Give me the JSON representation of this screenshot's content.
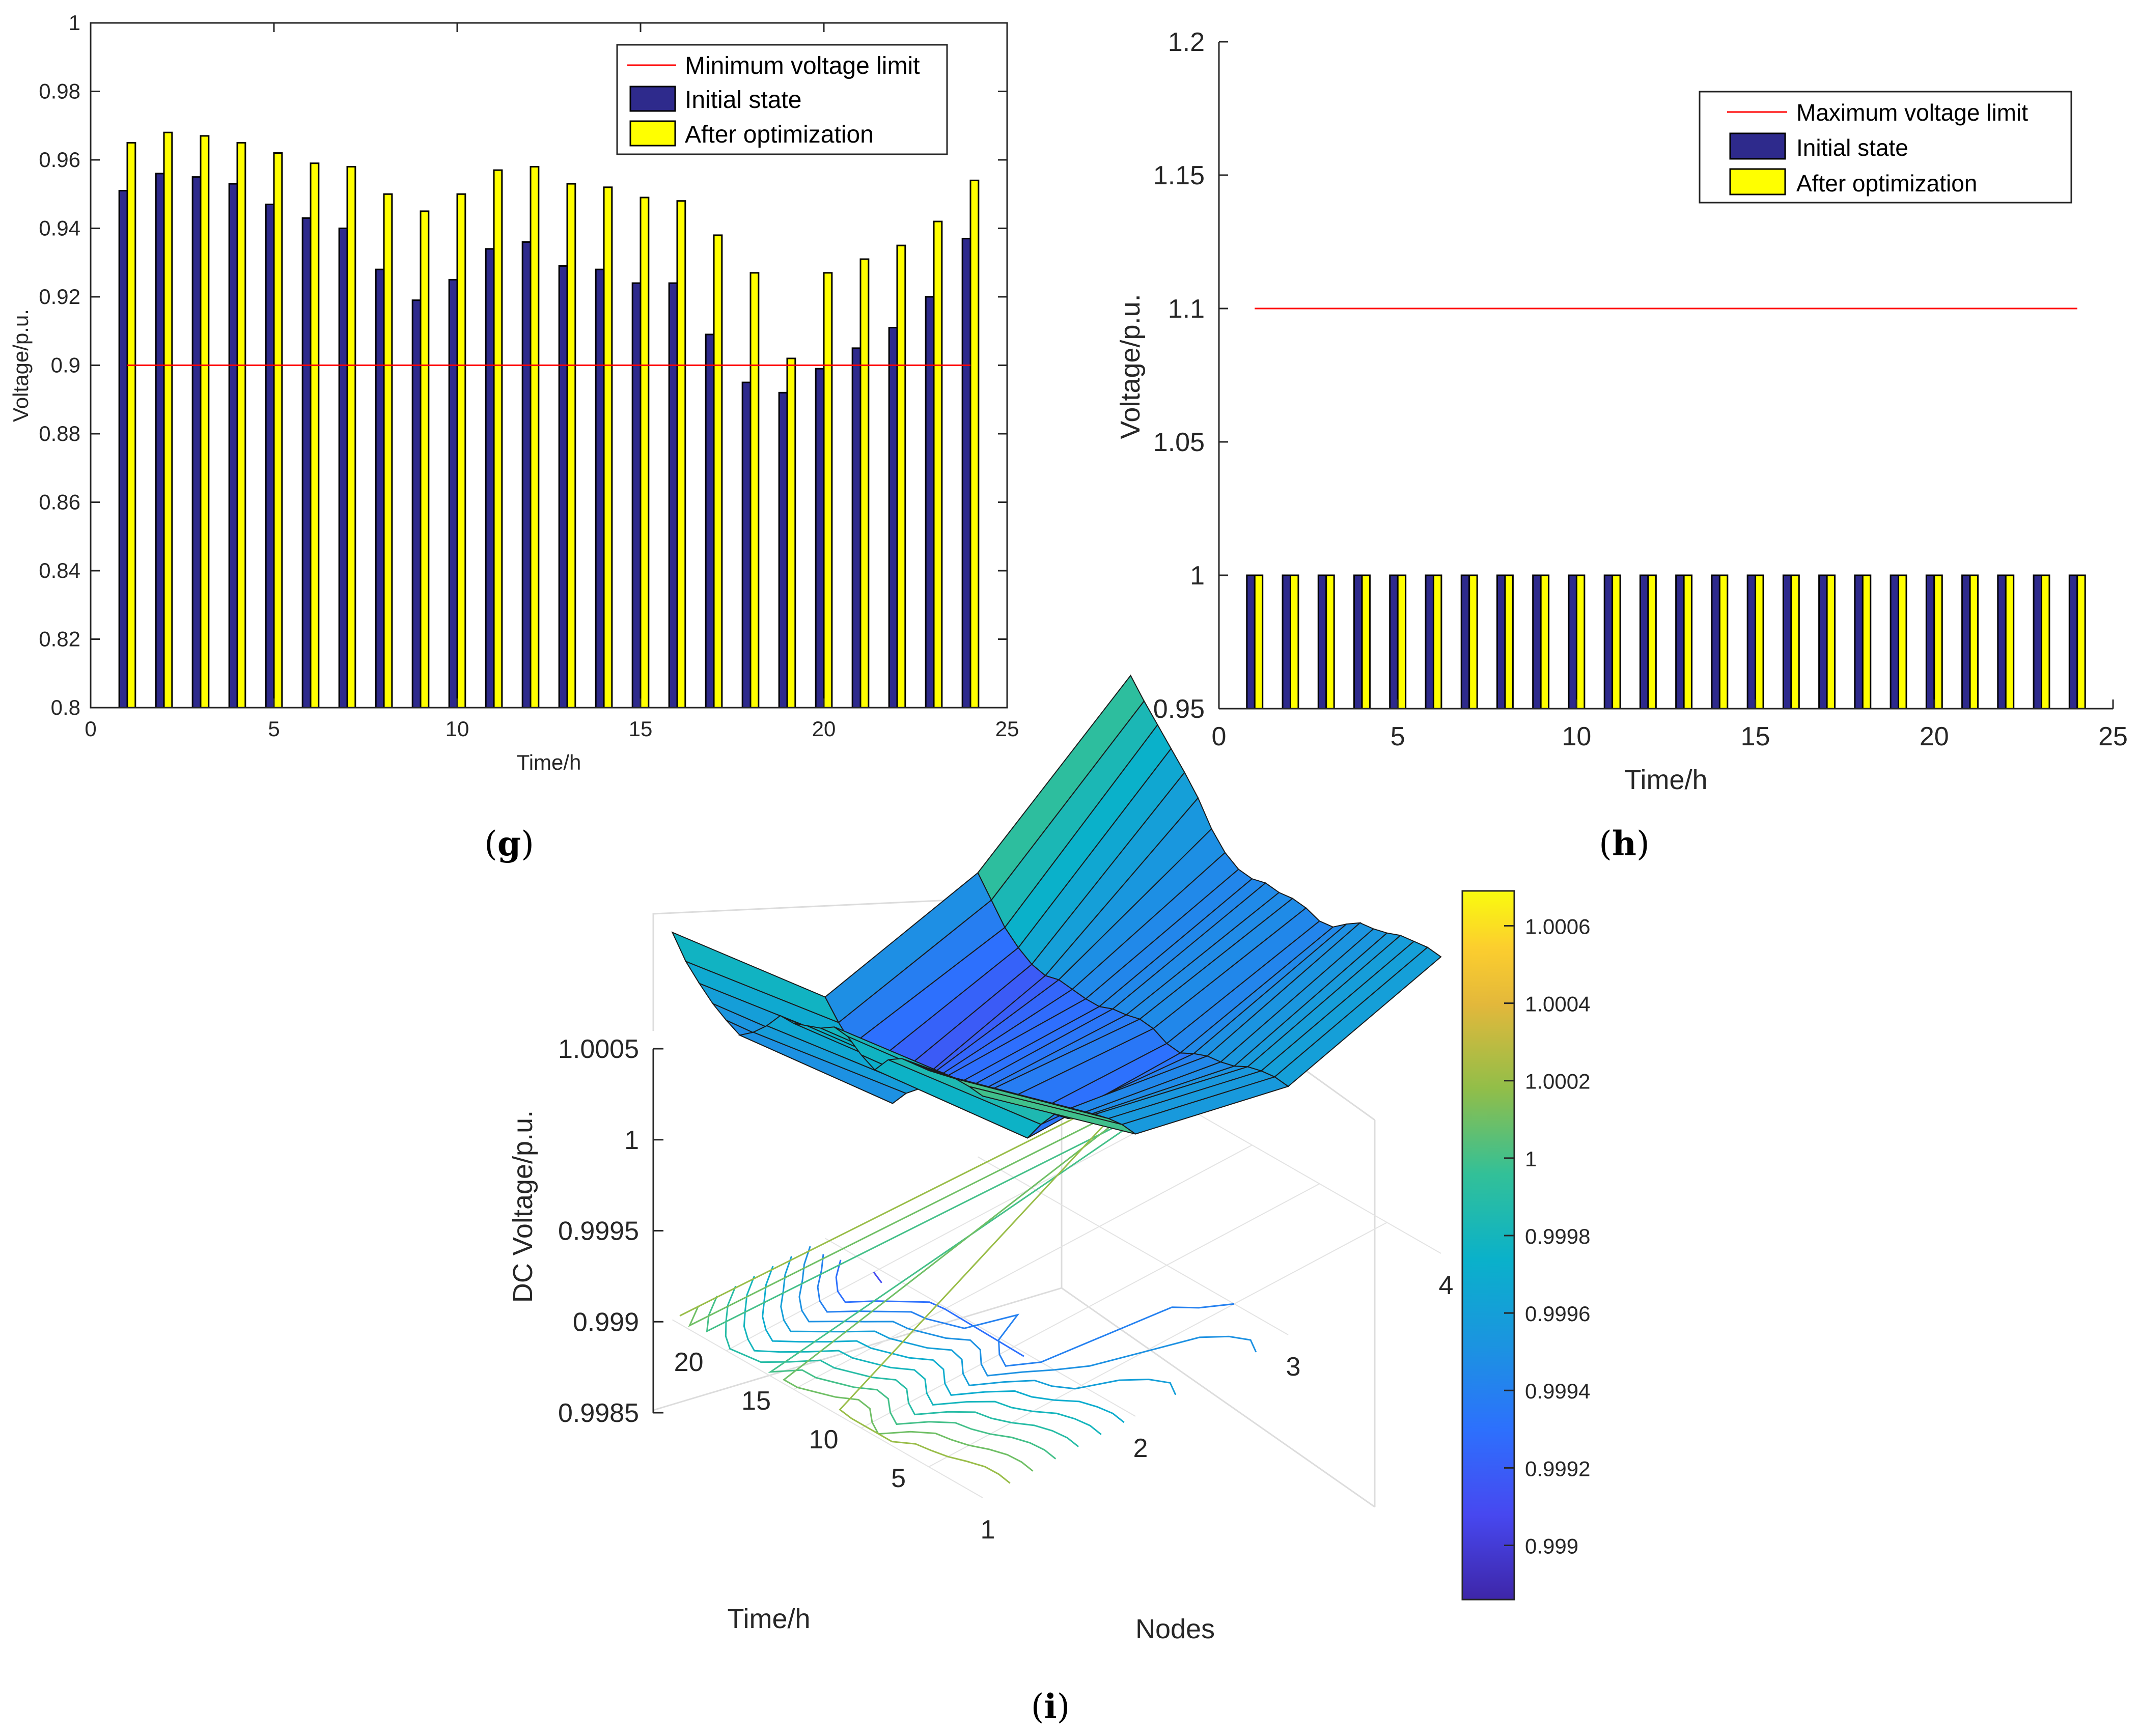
{
  "chart_data": [
    {
      "id": "g",
      "type": "bar",
      "panel_label_open": "(",
      "panel_label_letter": "g",
      "panel_label_close": ")",
      "xlabel": "Time/h",
      "ylabel": "Voltage/p.u.",
      "xlim": [
        0,
        25
      ],
      "ylim": [
        0.8,
        1.0
      ],
      "xticks": [
        "0",
        "5",
        "10",
        "15",
        "20",
        "25"
      ],
      "yticks": [
        "0.8",
        "0.82",
        "0.84",
        "0.86",
        "0.88",
        "0.9",
        "0.92",
        "0.94",
        "0.96",
        "0.98",
        "1"
      ],
      "grid": false,
      "legend_position": "top-right",
      "x": [
        1,
        2,
        3,
        4,
        5,
        6,
        7,
        8,
        9,
        10,
        11,
        12,
        13,
        14,
        15,
        16,
        17,
        18,
        19,
        20,
        21,
        22,
        23,
        24
      ],
      "series": [
        {
          "name": "Initial state",
          "color": "#2e2a8c",
          "values": [
            0.951,
            0.956,
            0.955,
            0.953,
            0.947,
            0.943,
            0.94,
            0.928,
            0.919,
            0.925,
            0.934,
            0.936,
            0.929,
            0.928,
            0.924,
            0.924,
            0.909,
            0.895,
            0.892,
            0.899,
            0.905,
            0.911,
            0.92,
            0.937
          ]
        },
        {
          "name": "After optimization",
          "color": "#ffff00",
          "values": [
            0.965,
            0.968,
            0.967,
            0.965,
            0.962,
            0.959,
            0.958,
            0.95,
            0.945,
            0.95,
            0.957,
            0.958,
            0.953,
            0.952,
            0.949,
            0.948,
            0.938,
            0.927,
            0.902,
            0.927,
            0.931,
            0.935,
            0.942,
            0.954
          ]
        }
      ],
      "reference_line": {
        "name": "Minimum voltage limit",
        "color": "#ff0000",
        "value": 0.9,
        "x_from": 1,
        "x_to": 24
      }
    },
    {
      "id": "h",
      "type": "bar",
      "panel_label_open": "(",
      "panel_label_letter": "h",
      "panel_label_close": ")",
      "xlabel": "Time/h",
      "ylabel": "Voltage/p.u.",
      "xlim": [
        0,
        25
      ],
      "ylim": [
        0.95,
        1.2
      ],
      "xticks": [
        "0",
        "5",
        "10",
        "15",
        "20",
        "25"
      ],
      "yticks": [
        "0.95",
        "1",
        "1.05",
        "1.1",
        "1.15",
        "1.2"
      ],
      "grid": false,
      "legend_position": "top-right",
      "x": [
        1,
        2,
        3,
        4,
        5,
        6,
        7,
        8,
        9,
        10,
        11,
        12,
        13,
        14,
        15,
        16,
        17,
        18,
        19,
        20,
        21,
        22,
        23,
        24
      ],
      "series": [
        {
          "name": "Initial state",
          "color": "#2e2a8c",
          "values": [
            1,
            1,
            1,
            1,
            1,
            1,
            1,
            1,
            1,
            1,
            1,
            1,
            1,
            1,
            1,
            1,
            1,
            1,
            1,
            1,
            1,
            1,
            1,
            1
          ]
        },
        {
          "name": "After optimization",
          "color": "#ffff00",
          "values": [
            1,
            1,
            1,
            1,
            1,
            1,
            1,
            1,
            1,
            1,
            1,
            1,
            1,
            1,
            1,
            1,
            1,
            1,
            1,
            1,
            1,
            1,
            1,
            1
          ]
        }
      ],
      "reference_line": {
        "name": "Maximum voltage limit",
        "color": "#ff0000",
        "value": 1.1,
        "x_from": 1,
        "x_to": 24
      }
    },
    {
      "id": "i",
      "type": "surface",
      "panel_label_open": "(",
      "panel_label_letter": "i",
      "panel_label_close": ")",
      "xlabel": "Nodes",
      "ylabel": "Time/h",
      "zlabel": "DC Voltage/p.u.",
      "xticks": [
        "1",
        "2",
        "3",
        "4"
      ],
      "yticks": [
        "5",
        "10",
        "15",
        "20"
      ],
      "zticks": [
        "0.9985",
        "0.999",
        "0.9995",
        "1",
        "1.0005"
      ],
      "zlim": [
        0.9985,
        1.0005
      ],
      "grid": true,
      "nodes": [
        1,
        2,
        3,
        4
      ],
      "time": [
        1,
        2,
        3,
        4,
        5,
        6,
        7,
        8,
        9,
        10,
        11,
        12,
        13,
        14,
        15,
        16,
        17,
        18,
        19,
        20,
        21,
        22,
        23,
        24
      ],
      "z_by_node": [
        [
          1.00032,
          1.00033,
          1.00033,
          1.00031,
          1.00029,
          1.00028,
          1.00027,
          1.00022,
          1.00012,
          1.00016,
          1.00022,
          1.00023,
          1.00018,
          1.00015,
          1.00012,
          1.00012,
          1.00002,
          0.99994,
          0.99988,
          0.99992,
          0.99997,
          1.00004,
          1.00012,
          1.00024
        ],
        [
          0.99965,
          0.99966,
          0.99965,
          0.99963,
          0.99957,
          0.99952,
          0.9995,
          0.9994,
          0.99928,
          0.99932,
          0.99939,
          0.99941,
          0.99935,
          0.99932,
          0.99929,
          0.99928,
          0.99921,
          0.99914,
          0.99904,
          0.99907,
          0.99914,
          0.99924,
          0.99932,
          0.99942
        ],
        [
          0.99946,
          0.99947,
          0.99946,
          0.99944,
          0.9994,
          0.99938,
          0.99937,
          0.99934,
          0.9993,
          0.99931,
          0.99935,
          0.99936,
          0.99934,
          0.99933,
          0.9993,
          0.9993,
          0.99931,
          0.99932,
          0.9993,
          0.99932,
          0.99937,
          0.99944,
          0.99955,
          0.99966
        ],
        [
          0.99973,
          0.99974,
          0.99973,
          0.99972,
          0.99969,
          0.99967,
          0.99966,
          0.99961,
          0.99955,
          0.99954,
          0.99957,
          0.99958,
          0.99957,
          0.99958,
          0.99956,
          0.99957,
          0.99962,
          0.99971,
          0.99984,
          0.99994,
          1.00003,
          1.00012,
          1.00021,
          1.00031
        ]
      ],
      "colorbar": {
        "range": [
          0.99886,
          1.00069
        ],
        "ticks": [
          "0.999",
          "0.9992",
          "0.9994",
          "0.9996",
          "0.9998",
          "1",
          "1.0002",
          "1.0004",
          "1.0006"
        ],
        "tick_values": [
          0.999,
          0.9992,
          0.9994,
          0.9996,
          0.9998,
          1.0,
          1.0002,
          1.0004,
          1.0006
        ],
        "colormap": "parula"
      }
    }
  ]
}
